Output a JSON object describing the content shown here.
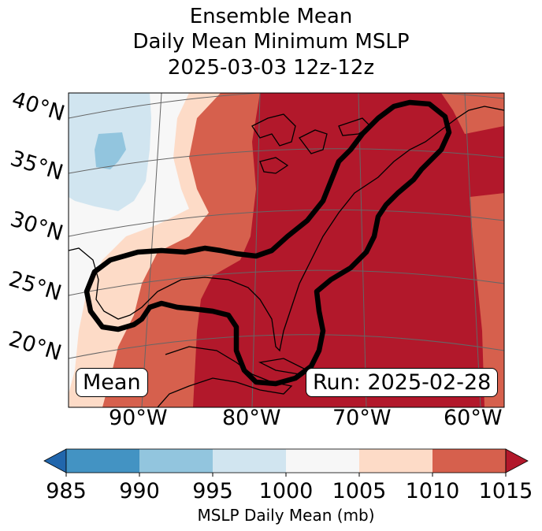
{
  "title": {
    "line1": "Ensemble Mean",
    "line2": "Daily Mean Minimum MSLP",
    "line3": "2025-03-03 12z-12z"
  },
  "map": {
    "latitude_labels": [
      "40°N",
      "35°N",
      "30°N",
      "25°N",
      "20°N"
    ],
    "longitude_labels": [
      "90°W",
      "80°W",
      "70°W",
      "60°W"
    ],
    "mean_box_label": "Mean",
    "run_box_label": "Run: 2025-02-28",
    "contour_color": "#000000"
  },
  "colorbar": {
    "label": "MSLP Daily Mean (mb)",
    "ticks": [
      "985",
      "990",
      "995",
      "1000",
      "1005",
      "1010",
      "1015"
    ],
    "colors": {
      "below_985": "#2166ac",
      "985_990": "#4393c3",
      "990_995": "#92c5de",
      "995_1000": "#d1e5f0",
      "1000_1005": "#f7f7f7",
      "1005_1010": "#fddbc7",
      "1010_1015": "#d6604d",
      "above_1015": "#b2182b"
    }
  }
}
